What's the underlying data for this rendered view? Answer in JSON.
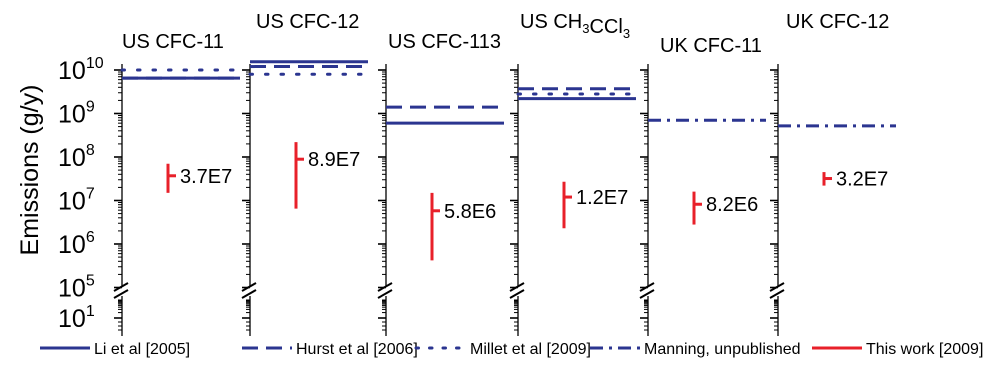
{
  "chart_data": {
    "type": "range",
    "ylabel": "Emissions (g/y)",
    "yscale": "log",
    "ylim": [
      100000,
      10000000000
    ],
    "y_extra_tick": "10^1",
    "y_tick_labels": [
      "10^5",
      "10^6",
      "10^7",
      "10^8",
      "10^9",
      "10^10"
    ],
    "colors": {
      "reference": "#2b3590",
      "this_work": "#e8202a"
    },
    "panels": [
      {
        "title": "US CFC-11",
        "this_work": {
          "low": 15000000,
          "high": 70000000,
          "best": 37000000,
          "label": "3.7E7"
        },
        "references": [
          {
            "series": "li",
            "value": 6500000000
          },
          {
            "series": "hurst",
            "value": 6500000000
          },
          {
            "series": "millet",
            "value": 10000000000
          }
        ]
      },
      {
        "title": "US CFC-12",
        "this_work": {
          "low": 6500000,
          "high": 220000000,
          "best": 89000000,
          "label": "8.9E7"
        },
        "references": [
          {
            "series": "li",
            "value": 15500000000
          },
          {
            "series": "hurst",
            "value": 12000000000
          },
          {
            "series": "millet",
            "value": 8000000000
          }
        ]
      },
      {
        "title": "US CFC-113",
        "this_work": {
          "low": 420000,
          "high": 15000000,
          "best": 5800000,
          "label": "5.8E6"
        },
        "references": [
          {
            "series": "li",
            "value": 600000000
          },
          {
            "series": "hurst",
            "value": 1400000000
          }
        ]
      },
      {
        "title": "US CH3CCl3",
        "title_parts": {
          "prefix": "US CH",
          "sub1": "3",
          "mid": "CCl",
          "sub2": "3"
        },
        "this_work": {
          "low": 2300000,
          "high": 27000000,
          "best": 12000000,
          "label": "1.2E7"
        },
        "references": [
          {
            "series": "li",
            "value": 2200000000
          },
          {
            "series": "hurst",
            "value": 3700000000
          },
          {
            "series": "millet",
            "value": 2800000000
          }
        ]
      },
      {
        "title": "UK CFC-11",
        "this_work": {
          "low": 2800000,
          "high": 16000000,
          "best": 8200000,
          "label": "8.2E6"
        },
        "references": [
          {
            "series": "manning",
            "value": 700000000
          }
        ]
      },
      {
        "title": "UK CFC-12",
        "this_work": {
          "low": 22000000,
          "high": 45000000,
          "best": 32000000,
          "label": "3.2E7"
        },
        "references": [
          {
            "series": "manning",
            "value": 520000000
          }
        ]
      }
    ],
    "legend": {
      "position": "bottom",
      "items": [
        {
          "key": "li",
          "label": "Li et al [2005]",
          "style": "solid",
          "color": "#2b3590"
        },
        {
          "key": "hurst",
          "label": "Hurst et al [2006]",
          "style": "dashed",
          "color": "#2b3590"
        },
        {
          "key": "millet",
          "label": "Millet et al [2009]",
          "style": "dotted",
          "color": "#2b3590"
        },
        {
          "key": "manning",
          "label": "Manning, unpublished",
          "style": "dashdot",
          "color": "#2b3590"
        },
        {
          "key": "this_work",
          "label": "This work [2009]",
          "style": "solid",
          "color": "#e8202a"
        }
      ]
    }
  }
}
